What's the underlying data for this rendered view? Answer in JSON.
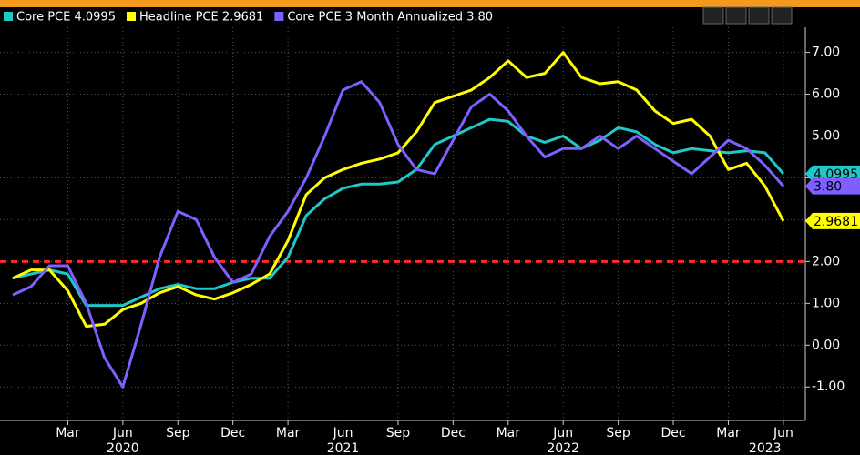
{
  "chart_data": {
    "type": "line",
    "x": [
      "2019-12",
      "2020-01",
      "2020-02",
      "2020-03",
      "2020-04",
      "2020-05",
      "2020-06",
      "2020-07",
      "2020-08",
      "2020-09",
      "2020-10",
      "2020-11",
      "2020-12",
      "2021-01",
      "2021-02",
      "2021-03",
      "2021-04",
      "2021-05",
      "2021-06",
      "2021-07",
      "2021-08",
      "2021-09",
      "2021-10",
      "2021-11",
      "2021-12",
      "2022-01",
      "2022-02",
      "2022-03",
      "2022-04",
      "2022-05",
      "2022-06",
      "2022-07",
      "2022-08",
      "2022-09",
      "2022-10",
      "2022-11",
      "2022-12",
      "2023-01",
      "2023-02",
      "2023-03",
      "2023-04",
      "2023-05",
      "2023-06"
    ],
    "series": [
      {
        "name": "Core PCE 4.0995",
        "color": "#1fc7c7",
        "end_label": "4.0995",
        "values": [
          1.6,
          1.7,
          1.8,
          1.7,
          0.95,
          0.95,
          0.95,
          1.15,
          1.35,
          1.45,
          1.35,
          1.35,
          1.5,
          1.6,
          1.6,
          2.1,
          3.1,
          3.5,
          3.75,
          3.85,
          3.85,
          3.9,
          4.2,
          4.8,
          5.0,
          5.2,
          5.4,
          5.35,
          5.0,
          4.85,
          5.0,
          4.7,
          4.9,
          5.2,
          5.1,
          4.8,
          4.6,
          4.7,
          4.65,
          4.6,
          4.65,
          4.6,
          4.0995
        ]
      },
      {
        "name": "Headline PCE 2.9681",
        "color": "#ffff00",
        "end_label": "2.9681",
        "values": [
          1.6,
          1.8,
          1.8,
          1.3,
          0.45,
          0.5,
          0.85,
          1.0,
          1.25,
          1.4,
          1.2,
          1.1,
          1.25,
          1.45,
          1.7,
          2.5,
          3.6,
          4.0,
          4.2,
          4.35,
          4.45,
          4.6,
          5.1,
          5.8,
          5.95,
          6.1,
          6.4,
          6.8,
          6.4,
          6.5,
          7.0,
          6.4,
          6.25,
          6.3,
          6.1,
          5.6,
          5.3,
          5.4,
          5.0,
          4.2,
          4.35,
          3.8,
          2.9681
        ]
      },
      {
        "name": "Core PCE 3 Month Annualized 3.80",
        "color": "#7f5fff",
        "end_label": "3.80",
        "values": [
          1.2,
          1.4,
          1.9,
          1.9,
          1.0,
          -0.3,
          -1.0,
          0.5,
          2.1,
          3.2,
          3.0,
          2.1,
          1.5,
          1.7,
          2.6,
          3.2,
          4.0,
          5.0,
          6.1,
          6.3,
          5.8,
          4.8,
          4.2,
          4.1,
          4.9,
          5.7,
          6.0,
          5.6,
          5.0,
          4.5,
          4.7,
          4.7,
          5.0,
          4.7,
          5.0,
          4.7,
          4.4,
          4.1,
          4.5,
          4.9,
          4.7,
          4.3,
          3.8
        ]
      }
    ],
    "reference_line": {
      "value": 2,
      "color": "#ff2a2a"
    },
    "ylim": [
      -1.8,
      7.6
    ],
    "yticks": [
      {
        "value": -1,
        "label": "-1.00"
      },
      {
        "value": 0,
        "label": "0.00"
      },
      {
        "value": 1,
        "label": "1.00"
      },
      {
        "value": 2,
        "label": "2.00"
      },
      {
        "value": 3,
        "label": "3.00"
      },
      {
        "value": 4,
        "label": "4.00"
      },
      {
        "value": 5,
        "label": "5.00"
      },
      {
        "value": 6,
        "label": "6.00"
      },
      {
        "value": 7,
        "label": "7.00"
      }
    ],
    "xticks": [
      {
        "value": "2020-03",
        "label": "Mar"
      },
      {
        "value": "2020-06",
        "label": "Jun"
      },
      {
        "value": "2020-09",
        "label": "Sep"
      },
      {
        "value": "2020-12",
        "label": "Dec"
      },
      {
        "value": "2021-03",
        "label": "Mar"
      },
      {
        "value": "2021-06",
        "label": "Jun"
      },
      {
        "value": "2021-09",
        "label": "Sep"
      },
      {
        "value": "2021-12",
        "label": "Dec"
      },
      {
        "value": "2022-03",
        "label": "Mar"
      },
      {
        "value": "2022-06",
        "label": "Jun"
      },
      {
        "value": "2022-09",
        "label": "Sep"
      },
      {
        "value": "2022-12",
        "label": "Dec"
      },
      {
        "value": "2023-03",
        "label": "Mar"
      },
      {
        "value": "2023-06",
        "label": "Jun"
      }
    ],
    "year_labels": [
      {
        "value": "2020-06",
        "label": "2020"
      },
      {
        "value": "2021-06",
        "label": "2021"
      },
      {
        "value": "2022-06",
        "label": "2022"
      },
      {
        "value": "2023-05",
        "label": "2023"
      }
    ],
    "grid": true
  }
}
